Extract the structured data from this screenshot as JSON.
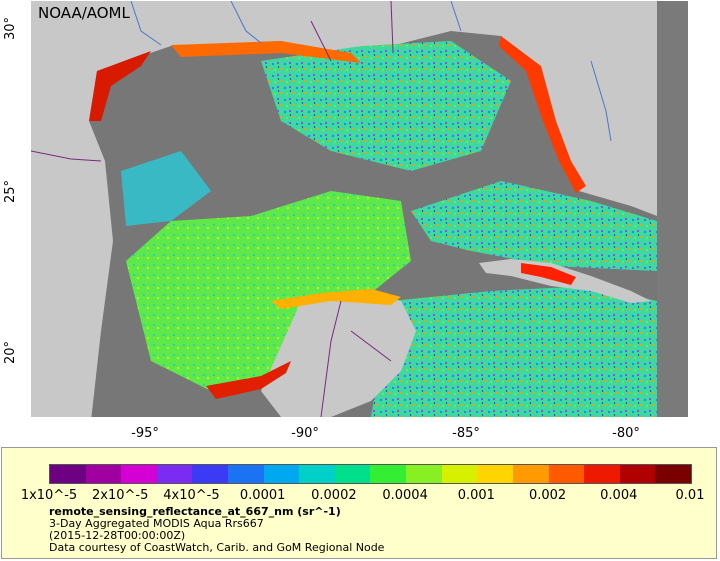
{
  "watermark": "NOAA/AOML",
  "y_axis": {
    "labels": [
      "30°",
      "25°",
      "20°"
    ]
  },
  "x_axis": {
    "labels": [
      "-95°",
      "-90°",
      "-85°",
      "-80°"
    ]
  },
  "colorbar": {
    "ticks": [
      "1x10^-5",
      "2x10^-5",
      "4x10^-5",
      "0.0001",
      "0.0002",
      "0.0004",
      "0.001",
      "0.002",
      "0.004",
      "0.01"
    ],
    "colors": [
      "#6e0082",
      "#a000a0",
      "#d400d4",
      "#7a2cf2",
      "#3b3bf5",
      "#1a73f2",
      "#00a8f0",
      "#00d0c8",
      "#00e08c",
      "#33ee33",
      "#88f022",
      "#d6f000",
      "#ffd400",
      "#ff9a00",
      "#ff5a00",
      "#ee1a00",
      "#b00000",
      "#7a0000"
    ]
  },
  "legend": {
    "variable": "remote_sensing_reflectance_at_667_nm (sr^-1)",
    "title": "3-Day Aggregated MODIS Aqua Rrs667",
    "time": "(2015-12-28T00:00:00Z)",
    "credit": "Data courtesy of CoastWatch, Carib. and GoM Regional Node"
  }
}
